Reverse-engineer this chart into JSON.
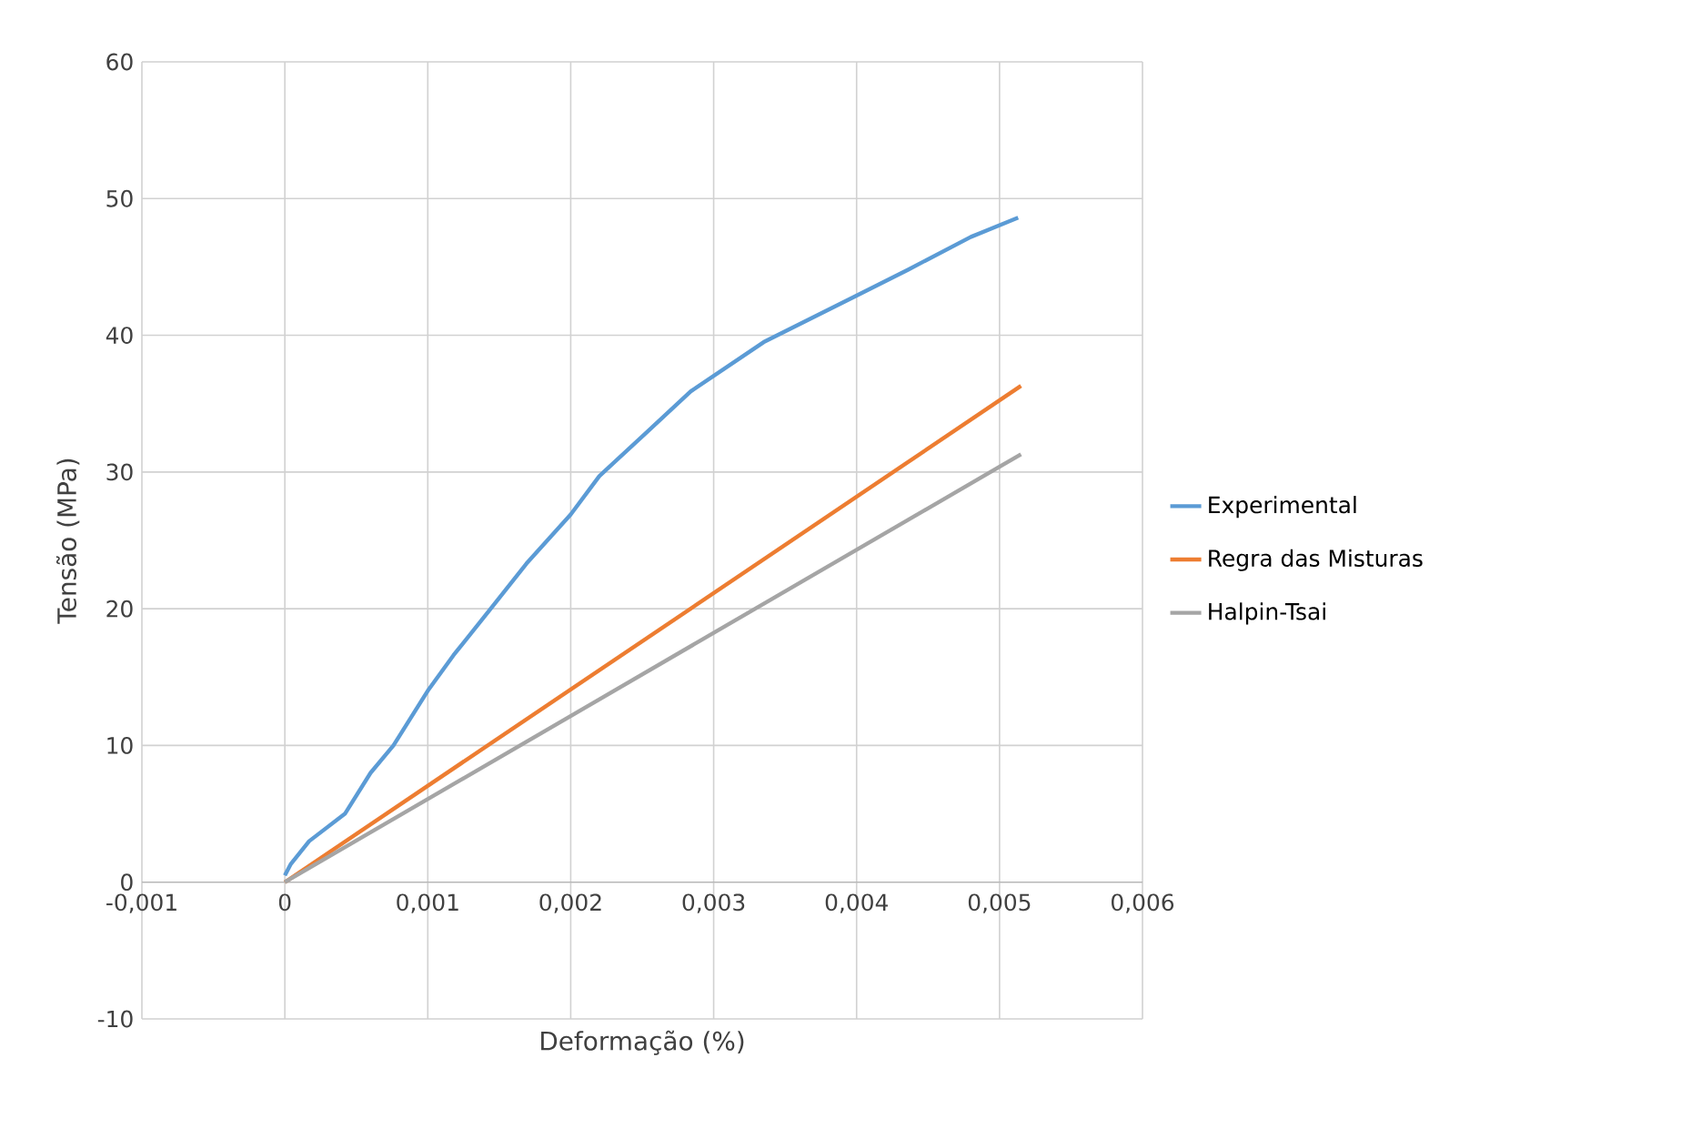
{
  "chart_data": {
    "type": "line",
    "xlabel": "Deformação (%)",
    "ylabel": "Tensão (MPa)",
    "xlim": [
      -0.001,
      0.006
    ],
    "ylim": [
      -10,
      60
    ],
    "xticks": [
      {
        "value": -0.001,
        "label": "-0,001"
      },
      0,
      {
        "value": 0.001,
        "label": "0,001"
      },
      {
        "value": 0.002,
        "label": "0,002"
      },
      {
        "value": 0.003,
        "label": "0,003"
      },
      {
        "value": 0.004,
        "label": "0,004"
      },
      {
        "value": 0.005,
        "label": "0,005"
      },
      {
        "value": 0.006,
        "label": "0,006"
      }
    ],
    "yticks": [
      -10,
      0,
      10,
      20,
      30,
      40,
      50,
      60
    ],
    "grid": true,
    "legend": "right",
    "marker": "none",
    "series": [
      {
        "name": "Experimental",
        "color": "#5b9bd5",
        "x": [
          0,
          4e-05,
          0.00017,
          0.00042,
          0.0006,
          0.00076,
          0.001,
          0.00118,
          0.00144,
          0.00169,
          0.002,
          0.0022,
          0.00252,
          0.00284,
          0.00335,
          0.00398,
          0.00436,
          0.0048,
          0.00513
        ],
        "values": [
          0.5,
          1.3,
          3,
          5,
          8,
          10,
          14,
          16.6,
          20,
          23.3,
          26.9,
          29.7,
          32.8,
          35.9,
          39.5,
          42.8,
          44.8,
          47.2,
          48.6
        ]
      },
      {
        "name": "Regra das Misturas",
        "color": "#ed7d31",
        "x": [
          0,
          0.00515
        ],
        "values": [
          0,
          36.3
        ]
      },
      {
        "name": "Halpin-Tsai",
        "color": "#a5a5a5",
        "x": [
          0,
          0.00515
        ],
        "values": [
          0,
          31.3
        ]
      }
    ]
  }
}
